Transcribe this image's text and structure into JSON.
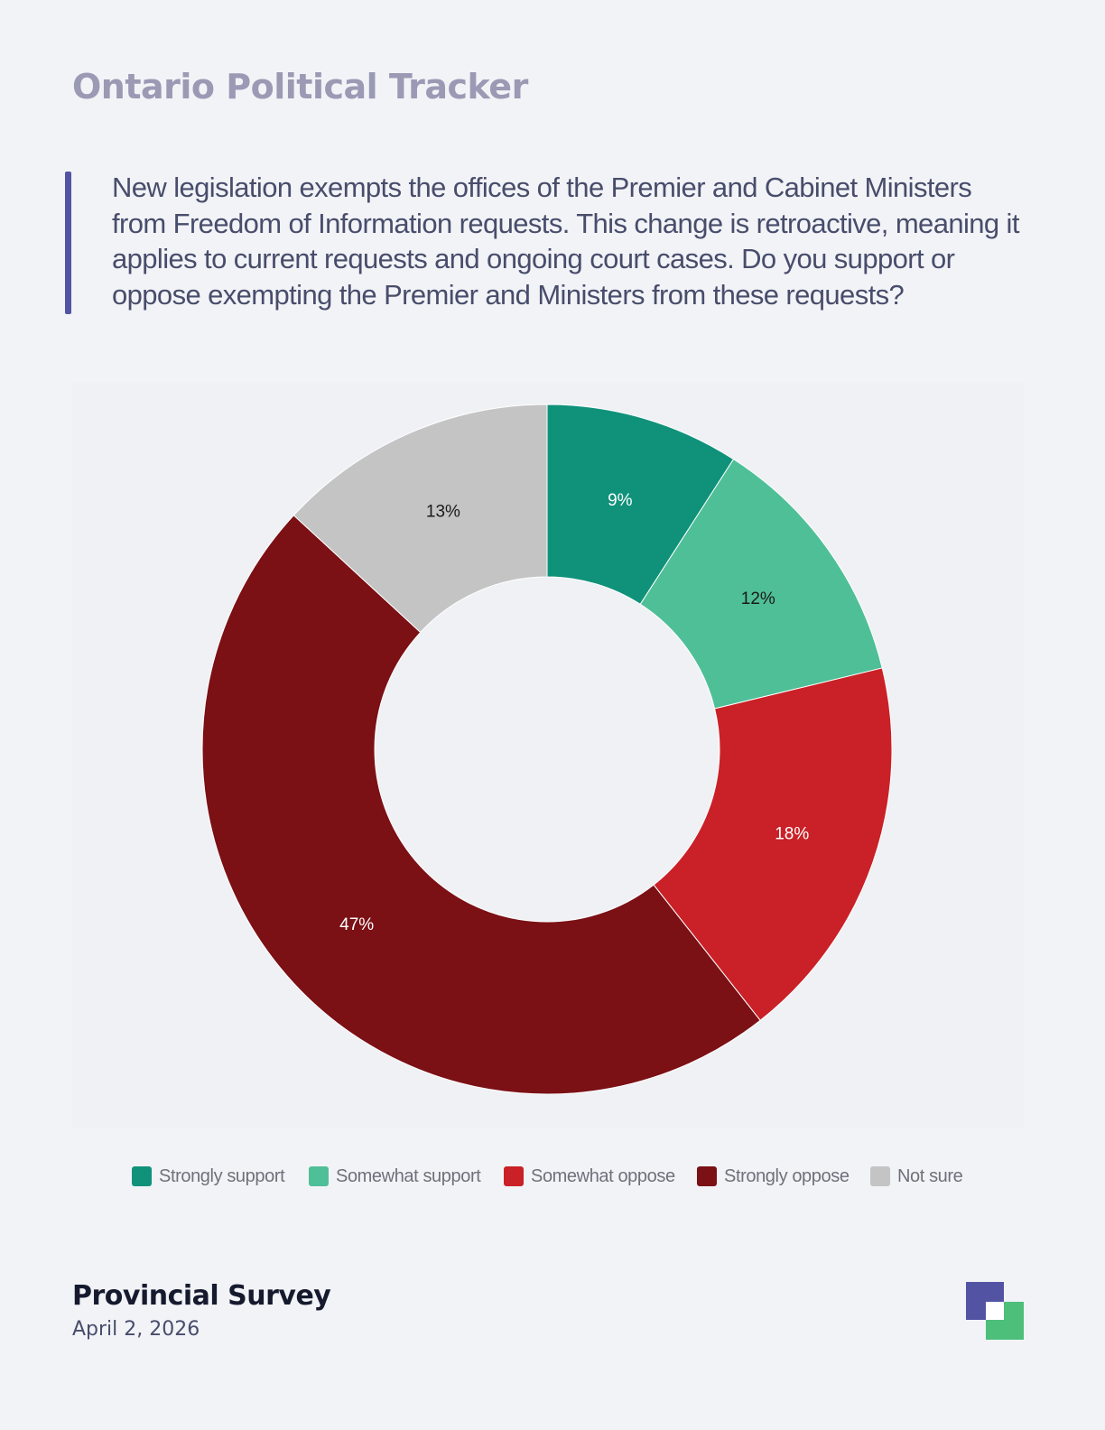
{
  "header": {
    "title": "Ontario Political Tracker"
  },
  "question": {
    "text": "New legislation exempts the offices of the Premier and Cabinet Ministers from Freedom of Information requests. This change is retroactive, meaning it applies to current requests and ongoing court cases. Do you support or oppose exempting the Premier and Ministers from these requests?"
  },
  "chart_data": {
    "type": "pie",
    "donut": true,
    "start_angle": "12 o'clock",
    "direction": "clockwise",
    "legend_position": "bottom",
    "slices": [
      {
        "name": "Strongly support",
        "value": 9,
        "label": "9%",
        "color": "#10927a",
        "label_color": "#ffffff"
      },
      {
        "name": "Somewhat support",
        "value": 12,
        "label": "12%",
        "color": "#4fbf97",
        "label_color": "#1a1a1a"
      },
      {
        "name": "Somewhat oppose",
        "value": 18,
        "label": "18%",
        "color": "#c92127",
        "label_color": "#ffffff"
      },
      {
        "name": "Strongly oppose",
        "value": 47,
        "label": "47%",
        "color": "#7b1015",
        "label_color": "#ffffff"
      },
      {
        "name": "Not sure",
        "value": 13,
        "label": "13%",
        "color": "#c4c4c4",
        "label_color": "#1a1a1a"
      }
    ]
  },
  "footer": {
    "title": "Provincial Survey",
    "date": "April 2, 2026"
  },
  "colors": {
    "accent": "#5254a3",
    "logo_green": "#4dbf7a",
    "background": "#f2f3f7"
  }
}
